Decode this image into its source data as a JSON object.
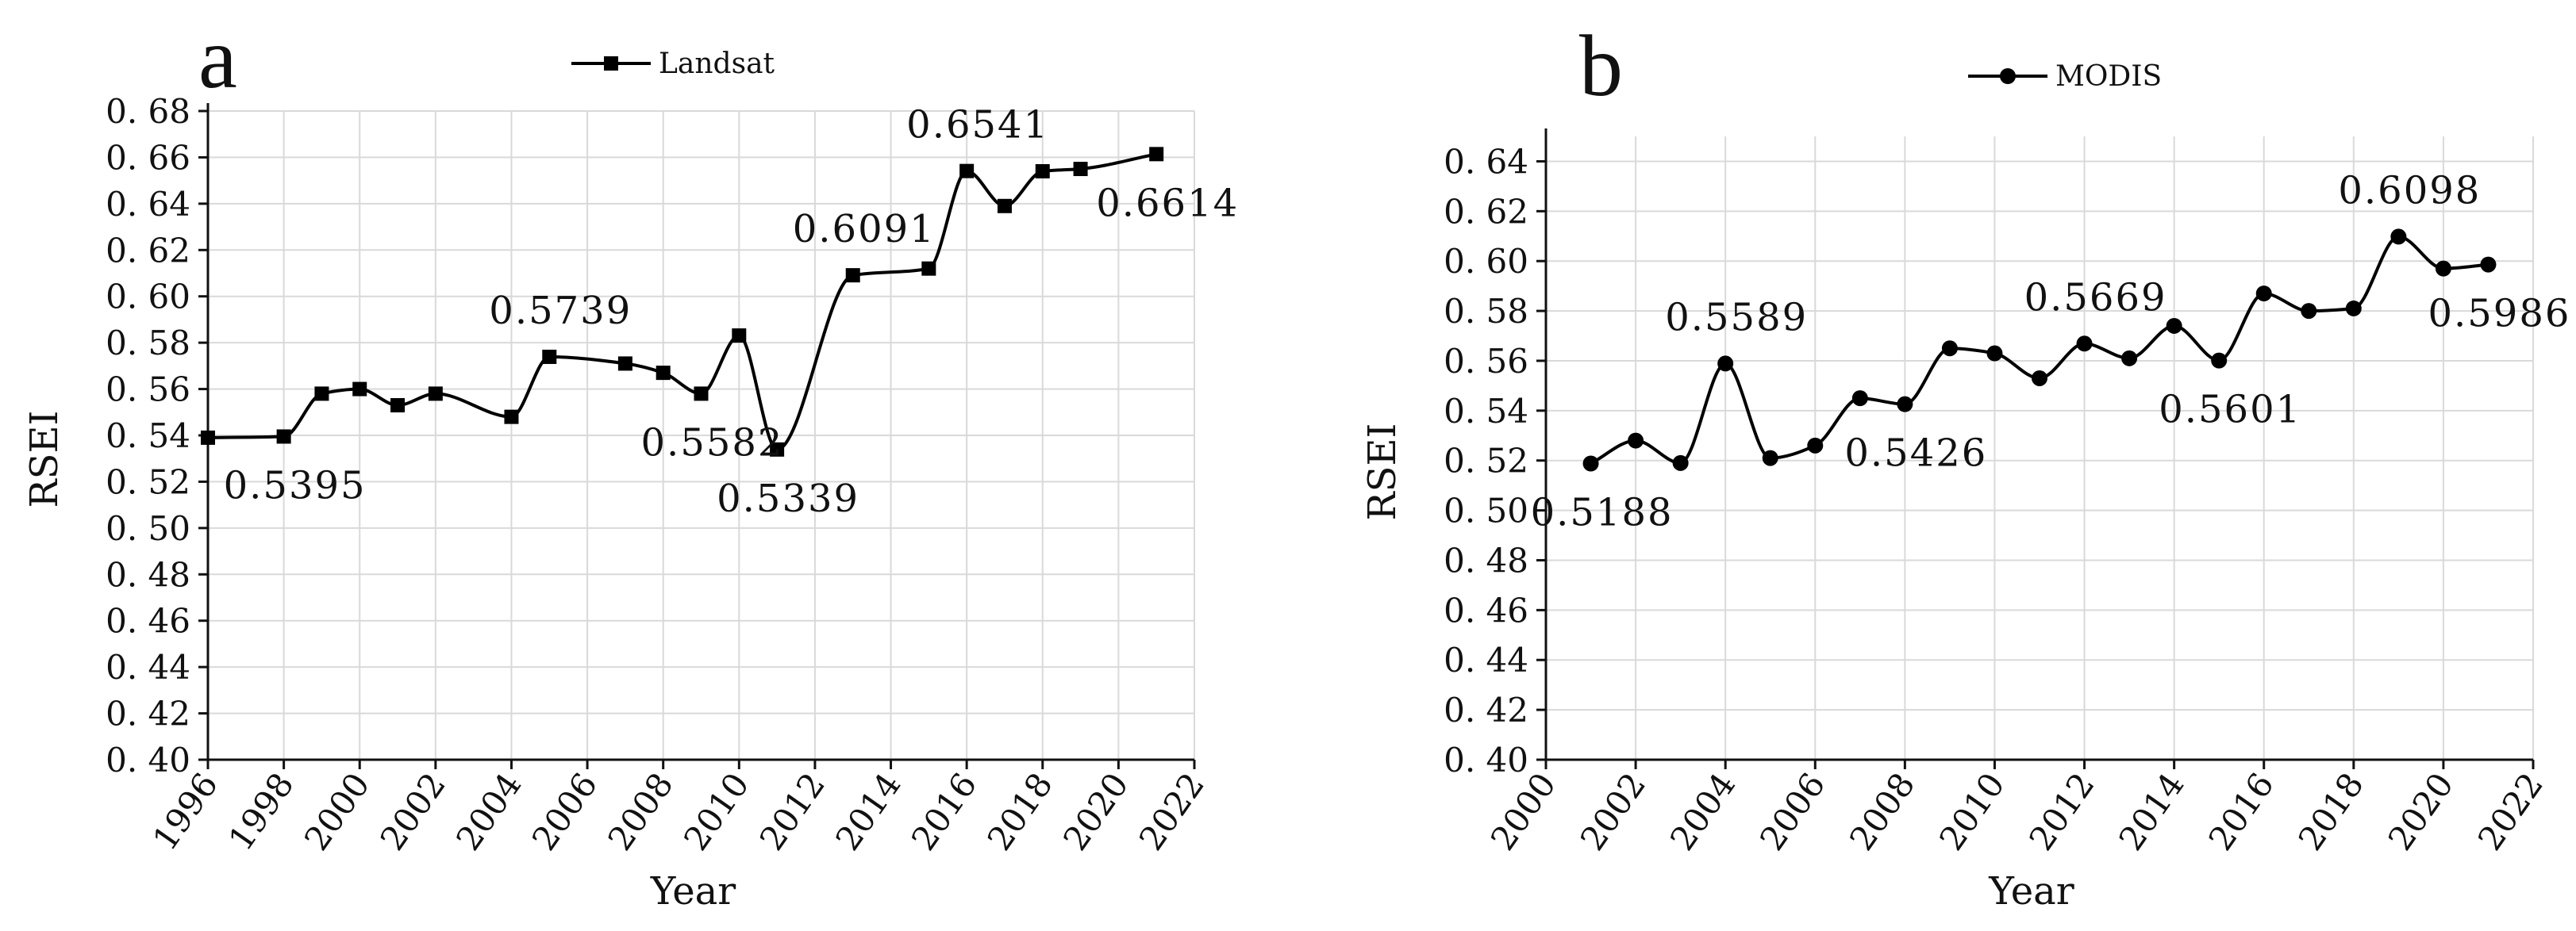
{
  "chart_data": [
    {
      "panel": "a",
      "type": "line",
      "marker": "square",
      "xlabel": "Year",
      "ylabel": "RSEI",
      "xlim": [
        1996,
        2022
      ],
      "xticks": [
        "1996",
        "1998",
        "2000",
        "2002",
        "2004",
        "2006",
        "2008",
        "2010",
        "2012",
        "2014",
        "2016",
        "2018",
        "2020",
        "2022"
      ],
      "ylim": [
        0.4,
        0.68
      ],
      "yticks": [
        "0.40",
        "0.42",
        "0.44",
        "0.46",
        "0.48",
        "0.50",
        "0.52",
        "0.54",
        "0.56",
        "0.58",
        "0.60",
        "0.62",
        "0.64",
        "0.66",
        "0.68"
      ],
      "grid": true,
      "legend_position": "top-center",
      "series": [
        {
          "name": "Landsat",
          "x": [
            1996,
            1998,
            1999,
            2000,
            2001,
            2002,
            2004,
            2005,
            2007,
            2008,
            2009,
            2010,
            2011,
            2013,
            2015,
            2016,
            2017,
            2018,
            2019,
            2021
          ],
          "values": [
            0.539,
            0.5395,
            0.558,
            0.56,
            0.553,
            0.558,
            0.548,
            0.5739,
            0.571,
            0.567,
            0.558,
            0.5831,
            0.5339,
            0.6091,
            0.612,
            0.6541,
            0.639,
            0.654,
            0.655,
            0.6614
          ]
        }
      ],
      "annotations": [
        {
          "text": "0.5395",
          "x": 1998,
          "y": 0.5395,
          "pos": "below"
        },
        {
          "text": "0.5739",
          "x": 2005,
          "y": 0.5739,
          "pos": "above"
        },
        {
          "text": "0.5582",
          "x": 2009,
          "y": 0.558,
          "pos": "below"
        },
        {
          "text": "0.5339",
          "x": 2011,
          "y": 0.5339,
          "pos": "below"
        },
        {
          "text": "0.6091",
          "x": 2013,
          "y": 0.6091,
          "pos": "above"
        },
        {
          "text": "0.6541",
          "x": 2016,
          "y": 0.6541,
          "pos": "above"
        },
        {
          "text": "0.6614",
          "x": 2021,
          "y": 0.6614,
          "pos": "below"
        }
      ]
    },
    {
      "panel": "b",
      "type": "line",
      "marker": "circle",
      "xlabel": "Year",
      "ylabel": "RSEI",
      "xlim": [
        2000,
        2022
      ],
      "xticks": [
        "2000",
        "2002",
        "2004",
        "2006",
        "2008",
        "2010",
        "2012",
        "2014",
        "2016",
        "2018",
        "2020",
        "2022"
      ],
      "ylim": [
        0.4,
        0.65
      ],
      "yticks": [
        "0.40",
        "0.42",
        "0.44",
        "0.46",
        "0.48",
        "0.50",
        "0.52",
        "0.54",
        "0.56",
        "0.58",
        "0.60",
        "0.62",
        "0.64"
      ],
      "grid": true,
      "legend_position": "top-center",
      "series": [
        {
          "name": "MODIS",
          "x": [
            2001,
            2002,
            2003,
            2004,
            2005,
            2006,
            2007,
            2008,
            2009,
            2010,
            2011,
            2012,
            2013,
            2014,
            2015,
            2016,
            2017,
            2018,
            2019,
            2020,
            2021
          ],
          "values": [
            0.5188,
            0.528,
            0.519,
            0.5589,
            0.521,
            0.526,
            0.545,
            0.5426,
            0.565,
            0.563,
            0.553,
            0.5669,
            0.561,
            0.574,
            0.5601,
            0.587,
            0.58,
            0.581,
            0.6098,
            0.597,
            0.5986
          ]
        }
      ],
      "annotations": [
        {
          "text": "0.5188",
          "x": 2001,
          "y": 0.5188,
          "pos": "below"
        },
        {
          "text": "0.5589",
          "x": 2004,
          "y": 0.5589,
          "pos": "above"
        },
        {
          "text": "0.5426",
          "x": 2008,
          "y": 0.5426,
          "pos": "below"
        },
        {
          "text": "0.5669",
          "x": 2012,
          "y": 0.5669,
          "pos": "above"
        },
        {
          "text": "0.5601",
          "x": 2015,
          "y": 0.5601,
          "pos": "below"
        },
        {
          "text": "0.6098",
          "x": 2019,
          "y": 0.6098,
          "pos": "above"
        },
        {
          "text": "0.5986",
          "x": 2021,
          "y": 0.5986,
          "pos": "below"
        }
      ]
    }
  ]
}
